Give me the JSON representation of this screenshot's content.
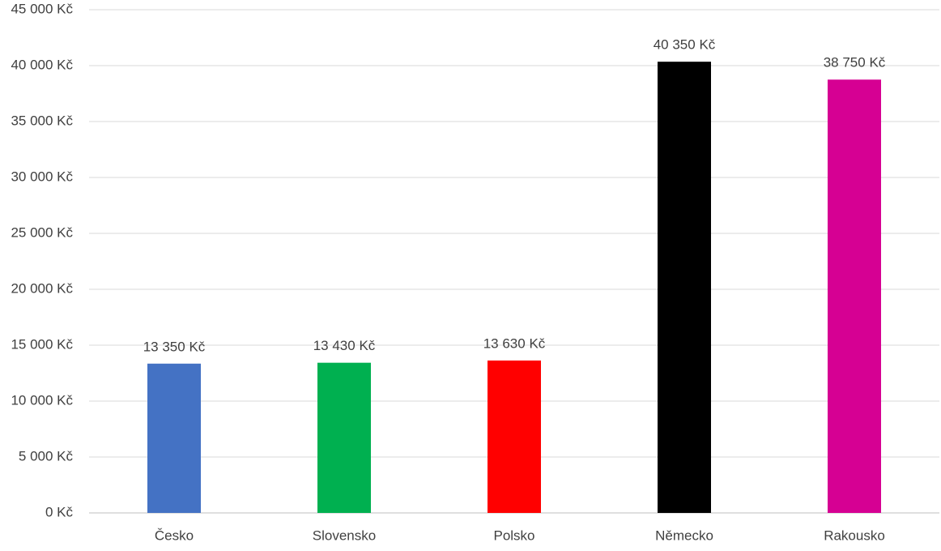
{
  "chart_data": {
    "type": "bar",
    "categories": [
      "Česko",
      "Slovensko",
      "Polsko",
      "Německo",
      "Rakousko"
    ],
    "values": [
      13350,
      13430,
      13630,
      40350,
      38750
    ],
    "value_labels": [
      "13 350 Kč",
      "13 430 Kč",
      "13 630 Kč",
      "40 350 Kč",
      "38 750 Kč"
    ],
    "colors": [
      "#4472c4",
      "#00b050",
      "#ff0000",
      "#000000",
      "#d60093"
    ],
    "ylim": [
      0,
      45000
    ],
    "yticks": [
      {
        "value": 0,
        "label": "0 Kč"
      },
      {
        "value": 5000,
        "label": "5 000 Kč"
      },
      {
        "value": 10000,
        "label": "10 000 Kč"
      },
      {
        "value": 15000,
        "label": "15 000 Kč"
      },
      {
        "value": 20000,
        "label": "20 000 Kč"
      },
      {
        "value": 25000,
        "label": "25 000 Kč"
      },
      {
        "value": 30000,
        "label": "30 000 Kč"
      },
      {
        "value": 35000,
        "label": "35 000 Kč"
      },
      {
        "value": 40000,
        "label": "40 000 Kč"
      },
      {
        "value": 45000,
        "label": "45 000 Kč"
      }
    ],
    "grid": true
  }
}
